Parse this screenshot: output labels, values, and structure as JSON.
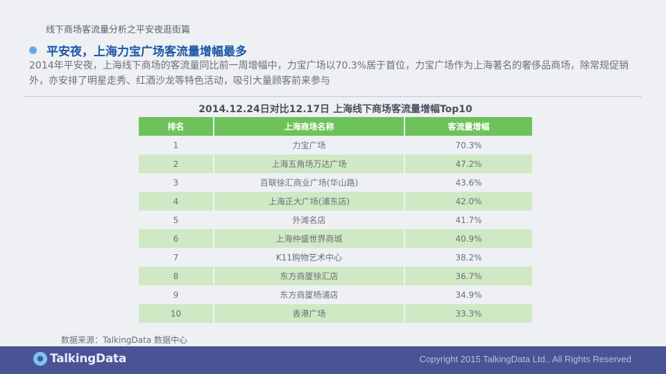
{
  "header": {
    "title": "线下商场客流量分析之平安夜逛街篇"
  },
  "headline": {
    "text": "平安夜，上海力宝广场客流量增幅最多"
  },
  "description": {
    "text": "2014年平安夜，上海线下商场的客流量同比前一周增幅中，力宝广场以70.3%居于首位，力宝广场作为上海著名的奢侈品商场，除常规促销外，亦安排了明星走秀、红酒沙龙等特色活动，吸引大量顾客前来参与"
  },
  "table": {
    "title": "2014.12.24日对比12.17日  上海线下商场客流量增幅Top10",
    "columns": [
      "排名",
      "上海商场名称",
      "客流量增幅"
    ],
    "rows": [
      [
        "1",
        "力宝广场",
        "70.3%"
      ],
      [
        "2",
        "上海五角场万达广场",
        "47.2%"
      ],
      [
        "3",
        "百联徐汇商业广场(华山路)",
        "43.6%"
      ],
      [
        "4",
        "上海正大广场(浦东店)",
        "42.0%"
      ],
      [
        "5",
        "外滩名店",
        "41.7%"
      ],
      [
        "6",
        "上海仲盛世界商城",
        "40.9%"
      ],
      [
        "7",
        "K11购物艺术中心",
        "38.2%"
      ],
      [
        "8",
        "东方商厦徐汇店",
        "36.7%"
      ],
      [
        "9",
        "东方商厦杨浦店",
        "34.9%"
      ],
      [
        "10",
        "香港广场",
        "33.3%"
      ]
    ]
  },
  "source": {
    "text": "数据来源：TalkingData 数据中心"
  },
  "footer": {
    "logo_text": "TalkingData",
    "logo_icon": "talkingdata-logo-icon",
    "copyright": "Copyright 2015 TalkingData Ltd., All Rights Reserved"
  },
  "colors": {
    "header_green": "#6dc35a",
    "row_green": "#cfe9c4",
    "headline_blue": "#1b57a6",
    "footer_bg": "#4a5394"
  }
}
